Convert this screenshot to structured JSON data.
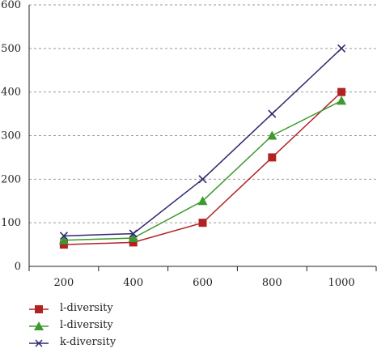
{
  "chart_data": {
    "type": "line",
    "x": [
      200,
      400,
      600,
      800,
      1000
    ],
    "categories": [
      "200",
      "400",
      "600",
      "800",
      "1000"
    ],
    "ylim": [
      0,
      600
    ],
    "yticks": [
      0,
      100,
      200,
      300,
      400,
      500,
      600
    ],
    "grid": true,
    "legend_position": "bottom-left",
    "series": [
      {
        "name": "l-diversity",
        "color": "#b22222",
        "marker": "square",
        "values": [
          50,
          55,
          100,
          250,
          400
        ]
      },
      {
        "name": "l-diversity",
        "color": "#3c9a2e",
        "marker": "triangle",
        "values": [
          60,
          65,
          150,
          300,
          380
        ]
      },
      {
        "name": "k-diversity",
        "color": "#2e2a6e",
        "marker": "x",
        "values": [
          70,
          75,
          200,
          350,
          500
        ]
      }
    ]
  }
}
